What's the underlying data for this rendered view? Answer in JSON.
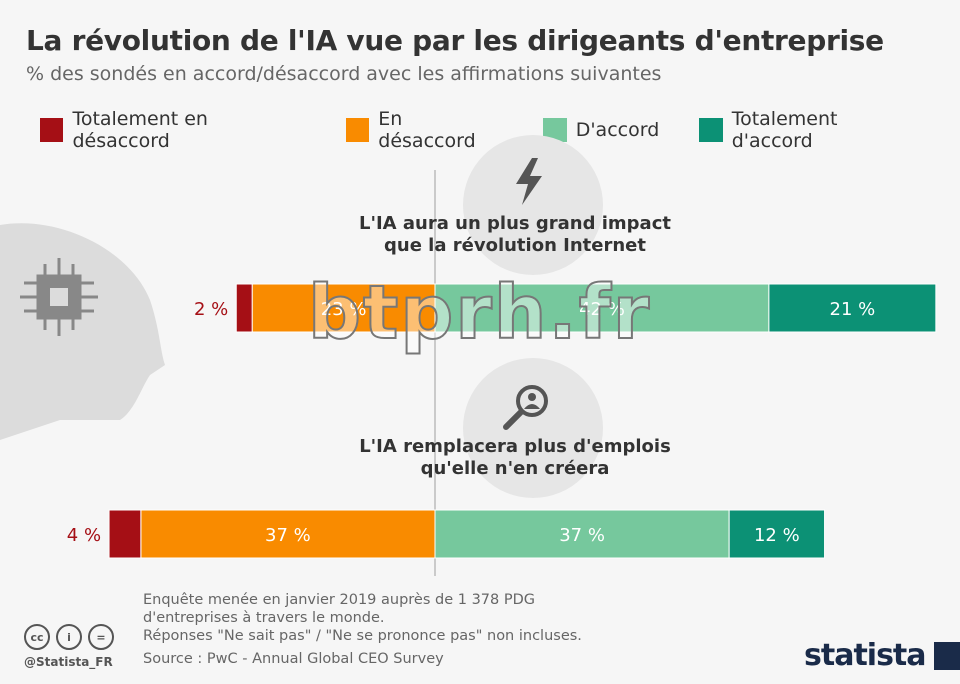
{
  "title": "La révolution de l'IA vue par les dirigeants d'entreprise",
  "subtitle": "% des sondés en accord/désaccord avec les affirmations suivantes",
  "chart_data": {
    "type": "bar",
    "orientation": "horizontal-diverging-stacked",
    "categories": [
      "L'IA aura un plus grand impact que la révolution Internet",
      "L'IA remplacera plus d'emplois qu'elle n'en créera"
    ],
    "category_lines": [
      [
        "L'IA aura un plus grand impact",
        "que la révolution Internet"
      ],
      [
        "L'IA remplacera plus d'emplois",
        "qu'elle n'en créera"
      ]
    ],
    "category_icons": [
      "lightning-icon",
      "magnifier-person-icon"
    ],
    "series": [
      {
        "name": "Totalement en désaccord",
        "color": "#a50f15",
        "values": [
          2,
          4
        ],
        "labels": [
          "2 %",
          "4 %"
        ],
        "side": "negative"
      },
      {
        "name": "En désaccord",
        "color": "#f98b00",
        "values": [
          23,
          37
        ],
        "labels": [
          "23 %",
          "37 %"
        ],
        "side": "negative"
      },
      {
        "name": "D'accord",
        "color": "#76c89d",
        "values": [
          42,
          37
        ],
        "labels": [
          "42 %",
          "37 %"
        ],
        "side": "positive"
      },
      {
        "name": "Totalement d'accord",
        "color": "#0c9175",
        "values": [
          21,
          12
        ],
        "labels": [
          "21 %",
          "12 %"
        ],
        "side": "positive"
      }
    ],
    "legend": "top",
    "grid": false
  },
  "watermark": "btprh.fr",
  "footer": {
    "notes": [
      "Enquête menée en janvier 2019 auprès de 1 378 PDG",
      "d'entreprises à travers le monde.",
      "Réponses \"Ne sait pas\" / \"Ne se prononce pas\" non incluses."
    ],
    "source": "Source : PwC - Annual Global CEO Survey",
    "handle": "@Statista_FR",
    "license_icons": [
      "cc",
      "i",
      "="
    ],
    "logo": "statista"
  }
}
